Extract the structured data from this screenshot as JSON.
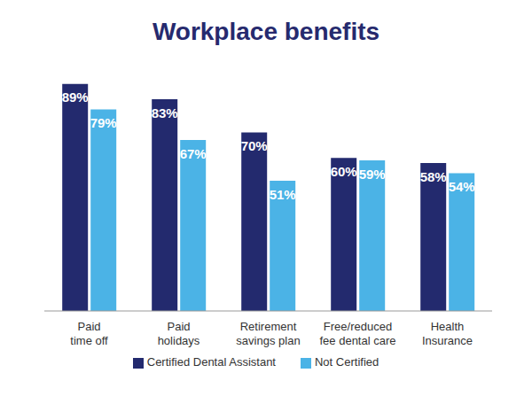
{
  "chart_data": {
    "type": "bar",
    "title": "Workplace benefits",
    "categories": [
      "Paid time off",
      "Paid holidays",
      "Retirement savings plan",
      "Free/reduced fee dental care",
      "Health Insurance"
    ],
    "series": [
      {
        "name": "Certified Dental Assistant",
        "color": "#232a6e",
        "values": [
          89,
          83,
          70,
          60,
          58
        ],
        "value_labels": [
          "89%",
          "83%",
          "70%",
          "60%",
          "58%"
        ]
      },
      {
        "name": "Not Certified",
        "color": "#4bb3e6",
        "values": [
          79,
          67,
          51,
          59,
          54
        ],
        "value_labels": [
          "79%",
          "67%",
          "51%",
          "59%",
          "54%"
        ]
      }
    ],
    "data_labels": true,
    "legend": "bottom",
    "tick_labels": "x",
    "grid": false
  }
}
